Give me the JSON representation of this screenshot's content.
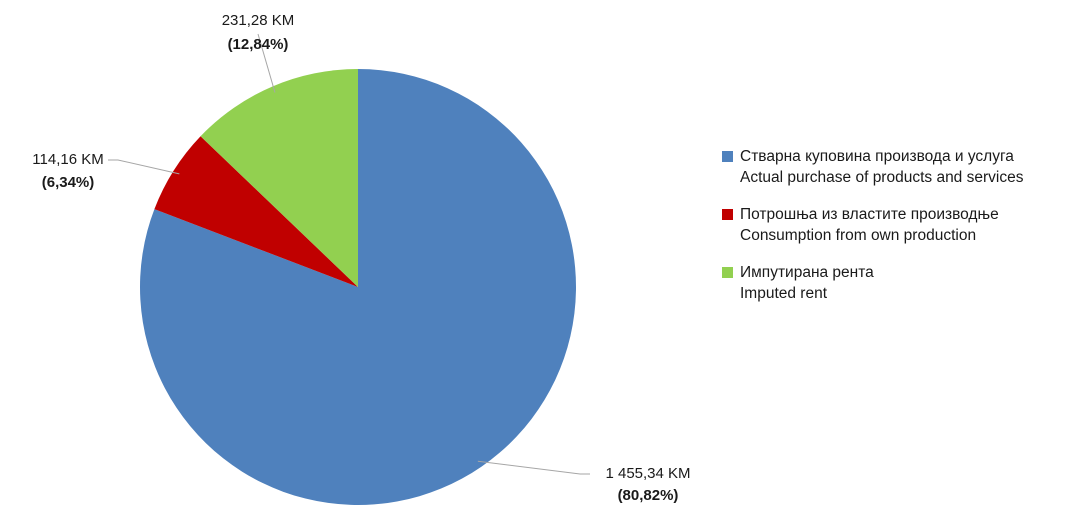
{
  "chart_data": {
    "type": "pie",
    "title": "",
    "start_angle_deg": 0,
    "direction": "clockwise",
    "slices": [
      {
        "label_line1": "Стварна куповина производа и услуга",
        "label_line2": "Actual purchase of products and services",
        "value": 1455.34,
        "value_text": "1 455,34 KM",
        "percent": 80.82,
        "percent_text": "(80,82%)",
        "color": "#4F81BD"
      },
      {
        "label_line1": "Потрошња из властите производње",
        "label_line2": "Consumption from own production",
        "value": 114.16,
        "value_text": "114,16 KM",
        "percent": 6.34,
        "percent_text": "(6,34%)",
        "color": "#C00000"
      },
      {
        "label_line1": "Импутирана рента",
        "label_line2": "Imputed rent",
        "value": 231.28,
        "value_text": "231,28 KM",
        "percent": 12.84,
        "percent_text": "(12,84%)",
        "color": "#92D050"
      }
    ],
    "legend_position": "right"
  }
}
